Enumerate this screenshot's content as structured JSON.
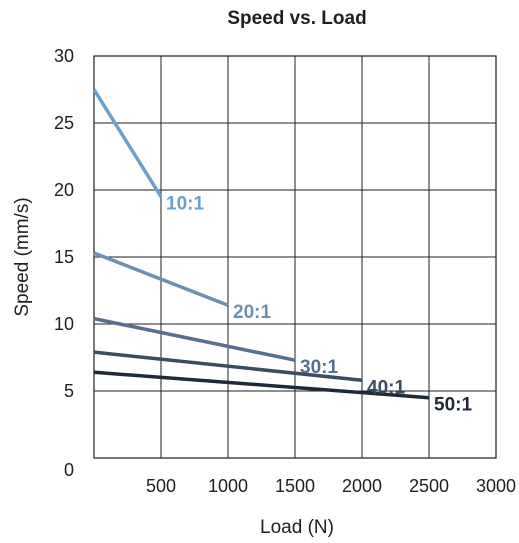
{
  "chart_data": {
    "type": "line",
    "title": "Speed vs. Load",
    "xlabel": "Load (N)",
    "ylabel": "Speed (mm/s)",
    "xlim": [
      0,
      3000
    ],
    "ylim": [
      0,
      30
    ],
    "xticks": [
      500,
      1000,
      1500,
      2000,
      2500,
      3000
    ],
    "yticks": [
      0,
      5,
      10,
      15,
      20,
      25,
      30
    ],
    "grid": true,
    "legend": "none",
    "series": [
      {
        "name": "10:1",
        "color": "#6aa0cc",
        "x": [
          0,
          500
        ],
        "y": [
          27.5,
          19.5
        ]
      },
      {
        "name": "20:1",
        "color": "#6f8fb0",
        "x": [
          0,
          1000
        ],
        "y": [
          15.3,
          11.4
        ]
      },
      {
        "name": "30:1",
        "color": "#566f8c",
        "x": [
          0,
          1500
        ],
        "y": [
          10.4,
          7.3
        ]
      },
      {
        "name": "40:1",
        "color": "#3c4d60",
        "x": [
          0,
          2000
        ],
        "y": [
          7.9,
          5.8
        ]
      },
      {
        "name": "50:1",
        "color": "#1f2a36",
        "x": [
          0,
          2500
        ],
        "y": [
          6.4,
          4.5
        ]
      }
    ]
  }
}
